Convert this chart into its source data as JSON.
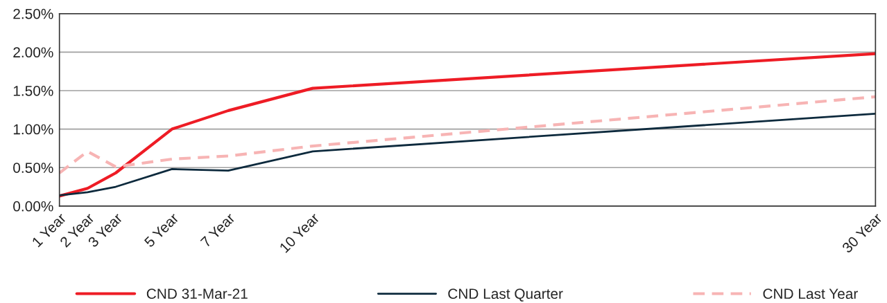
{
  "chart_data": {
    "type": "line",
    "x": [
      1,
      2,
      3,
      5,
      7,
      10,
      30
    ],
    "series": [
      {
        "name": "CND 31-Mar-21",
        "color": "#ee1c25",
        "line_style": "solid",
        "values": [
          0.13,
          0.23,
          0.43,
          1.0,
          1.24,
          1.53,
          1.98
        ]
      },
      {
        "name": "CND Last Quarter",
        "color": "#0d2a3d",
        "line_style": "solid",
        "values": [
          0.14,
          0.18,
          0.25,
          0.48,
          0.46,
          0.71,
          1.2
        ]
      },
      {
        "name": "CND Last Year",
        "color": "#f7b4b4",
        "line_style": "dashed",
        "values": [
          0.43,
          0.71,
          0.51,
          0.61,
          0.65,
          0.78,
          1.42
        ]
      }
    ],
    "xlim": [
      1,
      30
    ],
    "xticks": [
      {
        "value": 1,
        "label": "1 Year"
      },
      {
        "value": 2,
        "label": "2 Year"
      },
      {
        "value": 3,
        "label": "3 Year"
      },
      {
        "value": 5,
        "label": "5 Year"
      },
      {
        "value": 7,
        "label": "7 Year"
      },
      {
        "value": 10,
        "label": "10 Year"
      },
      {
        "value": 30,
        "label": "30 Year"
      }
    ],
    "ylim": [
      0,
      2.5
    ],
    "yticks": [
      {
        "value": 0,
        "label": "0.00%"
      },
      {
        "value": 0.5,
        "label": "0.50%"
      },
      {
        "value": 1,
        "label": "1.00%"
      },
      {
        "value": 1.5,
        "label": "1.50%"
      },
      {
        "value": 2,
        "label": "2.00%"
      },
      {
        "value": 2.5,
        "label": "2.50%"
      }
    ],
    "grid": "y",
    "legend": "bottom",
    "marker": "none"
  }
}
